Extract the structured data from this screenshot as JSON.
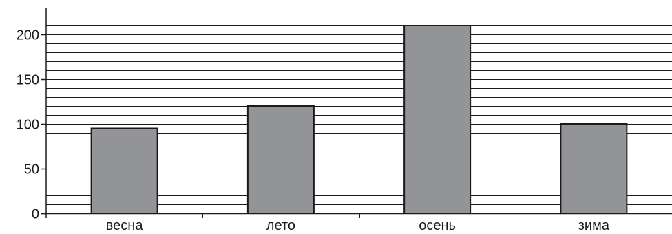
{
  "chart_data": {
    "type": "bar",
    "categories": [
      "весна",
      "лето",
      "осень",
      "зима"
    ],
    "values": [
      95,
      120,
      210,
      100
    ],
    "title": "",
    "xlabel": "",
    "ylabel": "",
    "ylim": [
      0,
      230
    ],
    "yticks": [
      0,
      50,
      100,
      150,
      200
    ],
    "minor_grid_step": 10,
    "grid": true,
    "legend": "none",
    "colors": {
      "bar_fill": "#939498",
      "bar_stroke": "#1a1a1a",
      "grid": "#1a1a1a",
      "axis": "#1a1a1a",
      "text": "#1a1a1a"
    }
  }
}
